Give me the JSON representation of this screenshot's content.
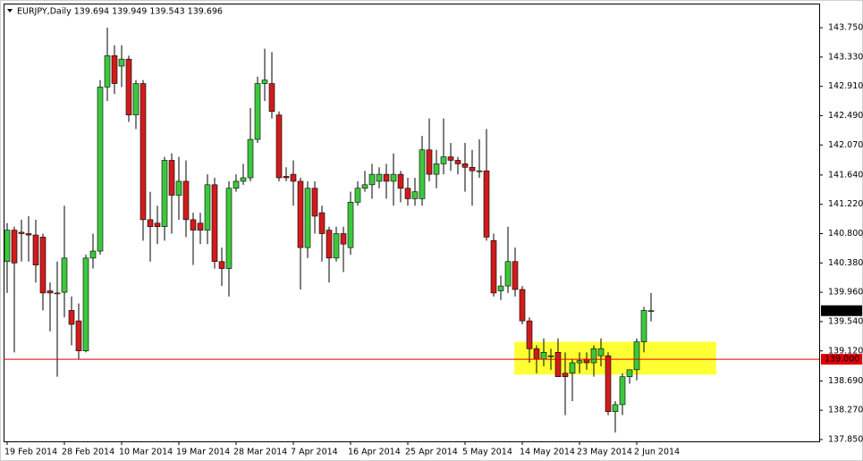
{
  "chart_data": {
    "type": "candlestick",
    "title": "EURJPY,Daily  139.694 139.949 139.543 139.696",
    "categories": [
      "19 Feb 2014",
      null,
      null,
      null,
      null,
      null,
      null,
      null,
      "28 Feb 2014",
      null,
      null,
      null,
      null,
      null,
      null,
      null,
      "10 Mar 2014",
      null,
      null,
      null,
      null,
      null,
      null,
      null,
      "19 Mar 2014",
      null,
      null,
      null,
      null,
      null,
      null,
      null,
      "28 Mar 2014",
      null,
      null,
      null,
      null,
      null,
      null,
      null,
      "7 Apr 2014",
      null,
      null,
      null,
      null,
      null,
      null,
      null,
      "16 Apr 2014",
      null,
      null,
      null,
      null,
      null,
      null,
      null,
      "25 Apr 2014",
      null,
      null,
      null,
      null,
      null,
      null,
      null,
      "5 May 2014",
      null,
      null,
      null,
      null,
      null,
      null,
      null,
      "14 May 2014",
      null,
      null,
      null,
      null,
      null,
      null,
      null,
      "23 May 2014",
      null,
      null,
      null,
      null,
      null,
      null,
      null,
      "2 Jun 2014",
      null,
      null
    ],
    "open": [
      140.4,
      140.85,
      140.82,
      140.8,
      140.78,
      140.75,
      139.98,
      139.95,
      139.96,
      139.7,
      139.55,
      139.12,
      140.45,
      140.55,
      142.9,
      143.35,
      143.2,
      143.3,
      142.5,
      142.95,
      141.0,
      140.95,
      140.9,
      141.85,
      141.35,
      141.55,
      141.0,
      140.95,
      140.85,
      141.5,
      140.4,
      140.3,
      141.45,
      141.55,
      141.6,
      142.15,
      142.95,
      142.95,
      142.5,
      141.62,
      141.65,
      141.55,
      140.6,
      141.45,
      141.1,
      140.85,
      140.45,
      140.8,
      140.6,
      141.25,
      141.45,
      141.5,
      141.55,
      141.65,
      141.55,
      141.65,
      141.45,
      141.3,
      141.3,
      142.0,
      141.65,
      141.8,
      141.9,
      141.85,
      141.8,
      141.75,
      141.7,
      141.7,
      140.7,
      139.98,
      140.05,
      140.4,
      140.0,
      139.55,
      139.15,
      139.0,
      139.05,
      139.1,
      138.8,
      138.8,
      138.95,
      139.0,
      138.95,
      139.05,
      139.05,
      138.25,
      138.35,
      138.75,
      138.85,
      139.25,
      139.694
    ],
    "high": [
      140.95,
      140.9,
      141.0,
      141.05,
      141.0,
      140.8,
      140.1,
      140.4,
      141.2,
      139.9,
      139.8,
      140.5,
      140.8,
      143.0,
      143.75,
      143.5,
      143.5,
      143.35,
      143.0,
      143.0,
      141.4,
      141.2,
      141.9,
      141.95,
      141.9,
      141.85,
      141.1,
      141.1,
      141.65,
      141.6,
      140.6,
      141.55,
      141.65,
      141.8,
      142.6,
      143.05,
      143.45,
      143.4,
      142.55,
      141.75,
      141.85,
      141.6,
      141.55,
      141.55,
      141.2,
      140.9,
      140.9,
      140.9,
      141.4,
      141.55,
      141.7,
      141.8,
      141.75,
      141.8,
      141.95,
      141.7,
      141.6,
      141.6,
      142.2,
      142.45,
      142.0,
      142.45,
      142.1,
      141.9,
      142.1,
      142.0,
      142.15,
      142.3,
      140.8,
      140.2,
      140.9,
      140.6,
      140.05,
      139.6,
      139.2,
      139.3,
      139.15,
      139.3,
      139.1,
      139.0,
      139.1,
      139.1,
      139.2,
      139.3,
      139.1,
      138.4,
      138.8,
      138.85,
      139.3,
      139.75,
      139.949
    ],
    "low": [
      139.95,
      139.1,
      140.4,
      140.4,
      140.1,
      139.7,
      139.4,
      138.75,
      139.6,
      139.2,
      139.0,
      139.1,
      140.3,
      140.5,
      142.7,
      142.8,
      142.9,
      142.4,
      142.3,
      140.7,
      140.4,
      140.65,
      140.7,
      140.8,
      141.0,
      140.75,
      140.35,
      140.65,
      140.65,
      140.3,
      140.05,
      139.9,
      141.4,
      141.5,
      141.55,
      142.1,
      142.7,
      142.45,
      141.55,
      141.55,
      141.2,
      140.0,
      140.45,
      140.8,
      140.4,
      140.1,
      140.4,
      140.25,
      140.5,
      141.2,
      141.4,
      141.3,
      141.45,
      141.3,
      141.2,
      141.25,
      141.2,
      141.2,
      141.2,
      141.55,
      141.45,
      141.65,
      141.7,
      141.65,
      141.4,
      141.2,
      141.6,
      140.7,
      139.9,
      139.85,
      139.95,
      139.9,
      139.5,
      138.95,
      138.8,
      138.9,
      138.85,
      138.75,
      138.2,
      138.4,
      138.8,
      138.85,
      138.75,
      138.9,
      138.2,
      137.95,
      138.2,
      138.65,
      138.7,
      139.1,
      139.543
    ],
    "close": [
      140.85,
      140.38,
      140.8,
      140.78,
      140.35,
      139.95,
      139.95,
      139.95,
      140.45,
      139.5,
      139.12,
      140.45,
      140.55,
      142.9,
      143.35,
      142.95,
      143.3,
      142.5,
      142.95,
      141.0,
      140.9,
      140.9,
      141.85,
      141.35,
      141.55,
      141.0,
      140.85,
      140.85,
      141.5,
      140.4,
      140.3,
      141.45,
      141.55,
      141.6,
      142.15,
      142.95,
      143.0,
      142.55,
      141.6,
      141.6,
      141.55,
      140.6,
      141.45,
      141.05,
      140.8,
      140.45,
      140.8,
      140.65,
      141.25,
      141.45,
      141.5,
      141.65,
      141.65,
      141.55,
      141.65,
      141.45,
      141.3,
      141.4,
      142.0,
      141.65,
      141.8,
      141.9,
      141.85,
      141.8,
      141.75,
      141.7,
      141.7,
      140.75,
      139.95,
      140.05,
      140.4,
      140.0,
      139.55,
      139.15,
      139.0,
      139.1,
      139.05,
      138.75,
      138.75,
      138.95,
      138.98,
      138.95,
      139.15,
      139.15,
      138.25,
      138.35,
      138.75,
      138.85,
      139.25,
      139.7,
      139.696
    ],
    "up_color": "#3cc83c",
    "down_color": "#d01c1c",
    "ylim": [
      137.824,
      144.096
    ],
    "yticks": [
      {
        "value": 143.75,
        "label": "143.750"
      },
      {
        "value": 143.33,
        "label": "143.330"
      },
      {
        "value": 142.91,
        "label": "142.910"
      },
      {
        "value": 142.49,
        "label": "142.490"
      },
      {
        "value": 142.07,
        "label": "142.070"
      },
      {
        "value": 141.64,
        "label": "141.640"
      },
      {
        "value": 141.22,
        "label": "141.220"
      },
      {
        "value": 140.8,
        "label": "140.800"
      },
      {
        "value": 140.38,
        "label": "140.380"
      },
      {
        "value": 139.96,
        "label": "139.960"
      },
      {
        "value": 139.54,
        "label": "139.540"
      },
      {
        "value": 139.12,
        "label": "139.120"
      },
      {
        "value": 138.69,
        "label": "138.690"
      },
      {
        "value": 138.27,
        "label": "138.270"
      },
      {
        "value": 137.85,
        "label": "137.850"
      }
    ],
    "grid": false,
    "hline": {
      "value": 139,
      "label": "139.000",
      "color": "#e00000"
    },
    "highlight": {
      "ylim": [
        138.78,
        139.25
      ],
      "xlim": [
        70.9,
        99.1
      ],
      "color": "#ffff33"
    }
  }
}
